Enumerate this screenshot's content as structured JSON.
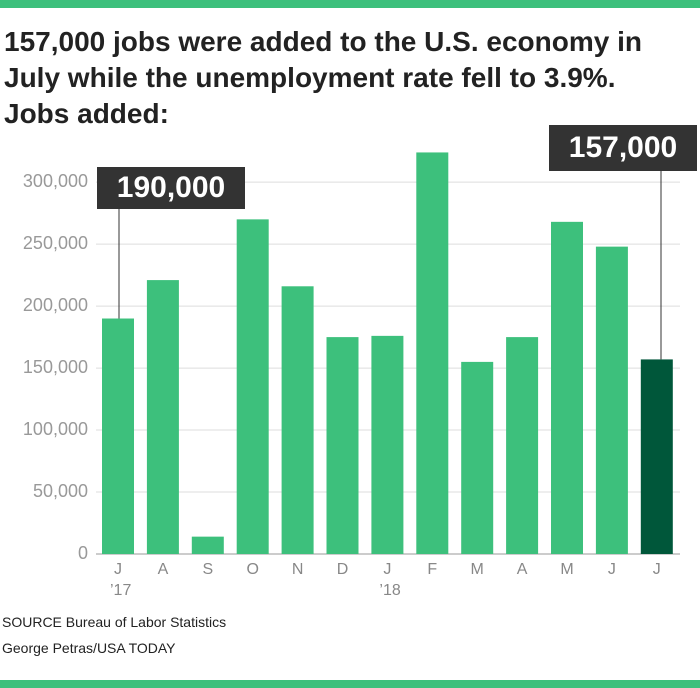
{
  "chart_data": {
    "type": "bar",
    "title": "157,000 jobs were added to the U.S. economy in July while the unemployment rate fell to 3.9%. Jobs added:",
    "categories": [
      "J",
      "A",
      "S",
      "O",
      "N",
      "D",
      "J",
      "F",
      "M",
      "A",
      "M",
      "J",
      "J"
    ],
    "x_sublabels": [
      "’17",
      null,
      null,
      null,
      null,
      null,
      "’18",
      null,
      null,
      null,
      null,
      null,
      null
    ],
    "values": [
      190000,
      221000,
      14000,
      270000,
      216000,
      175000,
      176000,
      324000,
      155000,
      175000,
      268000,
      248000,
      157000
    ],
    "value_labels": [
      "190,000",
      null,
      null,
      null,
      null,
      null,
      null,
      null,
      null,
      null,
      null,
      null,
      "157,000"
    ],
    "colors": [
      "#3dc07c",
      "#3dc07c",
      "#3dc07c",
      "#3dc07c",
      "#3dc07c",
      "#3dc07c",
      "#3dc07c",
      "#3dc07c",
      "#3dc07c",
      "#3dc07c",
      "#3dc07c",
      "#3dc07c",
      "#00573a"
    ],
    "ylim": [
      0,
      330000
    ],
    "yticks": [
      0,
      {
        "value": 50000,
        "label": "50,000"
      },
      {
        "value": 100000,
        "label": "100,000"
      },
      {
        "value": 150000,
        "label": "150,000"
      },
      {
        "value": 200000,
        "label": "200,000"
      },
      {
        "value": 250000,
        "label": "250,000"
      },
      {
        "value": 300000,
        "label": "300,000"
      }
    ],
    "grid": true,
    "source": "SOURCE Bureau of Labor Statistics",
    "credit": "George Petras/USA TODAY"
  }
}
